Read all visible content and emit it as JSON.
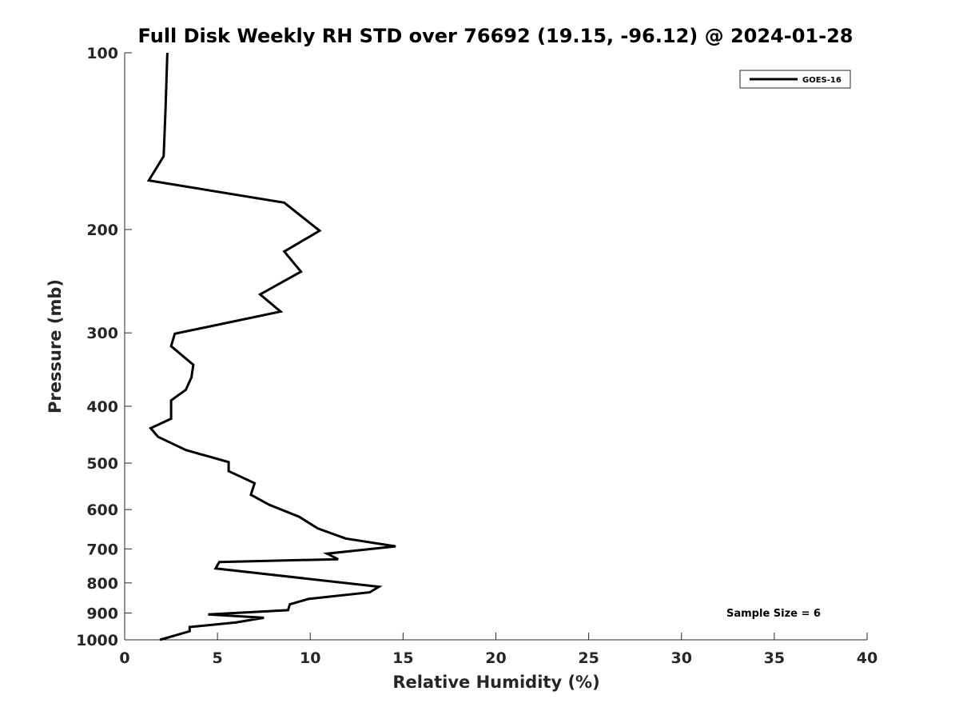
{
  "chart_data": {
    "type": "line",
    "title": "Full Disk Weekly RH STD over 76692 (19.15, -96.12) @ 2024-01-28",
    "xlabel": "Relative Humidity (%)",
    "ylabel": "Pressure (mb)",
    "xlim": [
      0,
      40
    ],
    "ylim": [
      100,
      1000
    ],
    "yscale": "log",
    "yreversed": true,
    "grid": false,
    "legend_position": "top-right",
    "x_ticks": [
      0,
      5,
      10,
      15,
      20,
      25,
      30,
      35,
      40
    ],
    "y_ticks": [
      100,
      200,
      300,
      400,
      500,
      600,
      700,
      800,
      900,
      1000
    ],
    "annotation": "Sample Size = 6",
    "series": [
      {
        "name": "GOES-16",
        "color": "#000000",
        "x": [
          2.3,
          2.2,
          2.1,
          1.3,
          8.6,
          10.5,
          8.6,
          9.5,
          7.3,
          8.4,
          2.7,
          2.5,
          3.7,
          3.6,
          3.3,
          2.5,
          2.5,
          1.4,
          1.8,
          3.3,
          5.6,
          5.6,
          7.0,
          6.8,
          7.8,
          9.4,
          10.4,
          11.9,
          14.6,
          10.9,
          11.5,
          5.1,
          4.9,
          13.7,
          13.2,
          9.9,
          8.9,
          8.8,
          4.5,
          7.5,
          6.0,
          3.5,
          3.5,
          1.9
        ],
        "y": [
          100,
          125,
          150,
          165,
          180,
          201,
          218,
          236,
          258,
          276,
          301,
          316,
          340,
          357,
          375,
          391,
          420,
          436,
          451,
          475,
          498,
          516,
          541,
          566,
          589,
          617,
          646,
          672,
          693,
          713,
          729,
          737,
          756,
          812,
          830,
          852,
          870,
          890,
          905,
          917,
          934,
          951,
          967,
          1000
        ]
      }
    ]
  }
}
